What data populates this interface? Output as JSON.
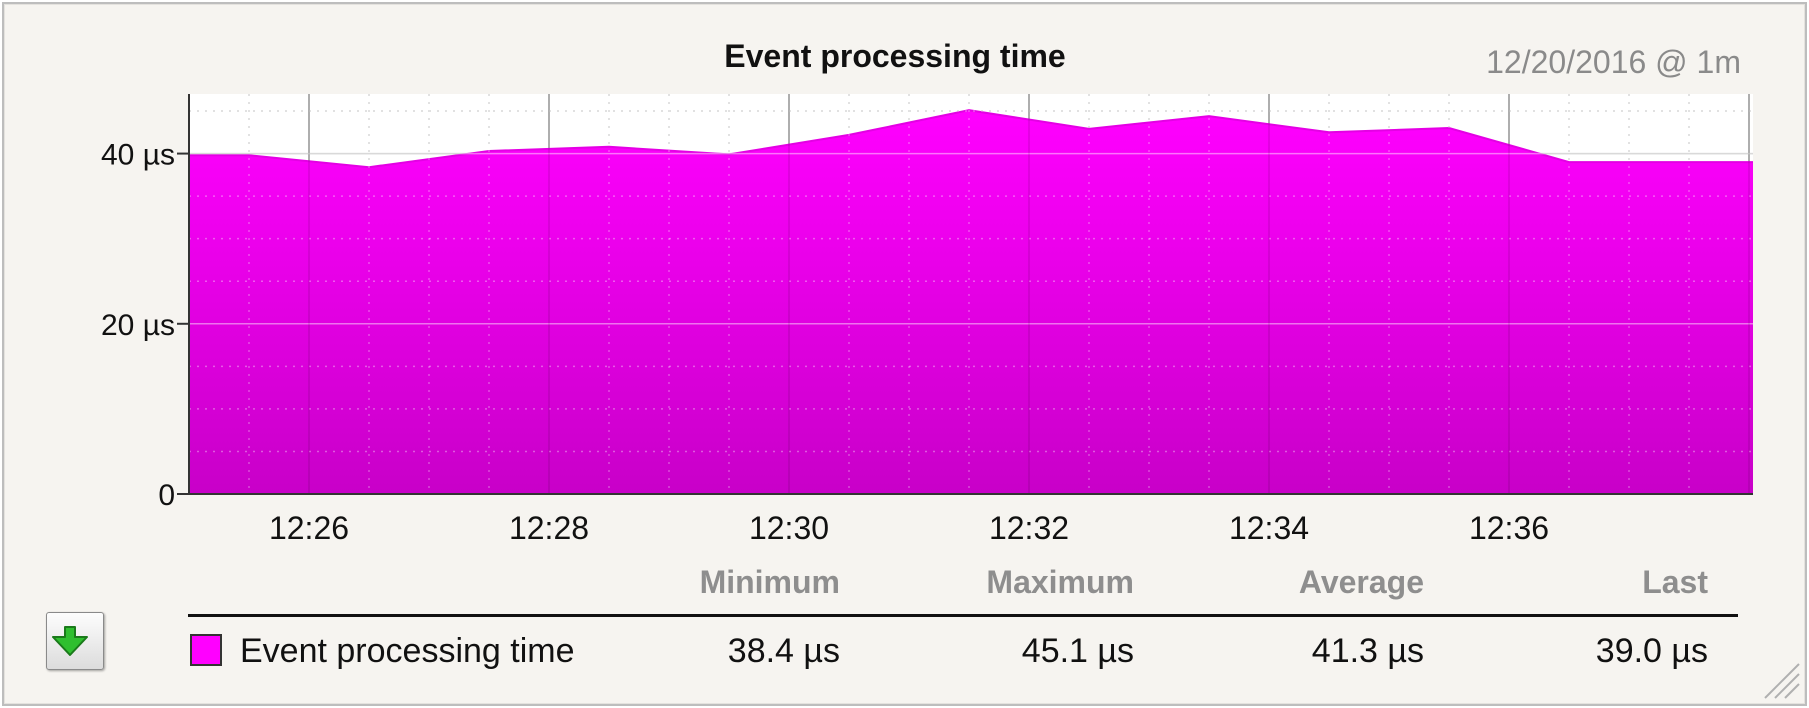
{
  "chart": {
    "title": "Event processing time",
    "date_label": "12/20/2016 @ 1m"
  },
  "chart_data": {
    "type": "area",
    "title": "Event processing time",
    "xlabel": "",
    "ylabel": "",
    "x_ticks": [
      "12:26",
      "12:28",
      "12:30",
      "12:32",
      "12:34",
      "12:36"
    ],
    "y_ticks": [
      "0",
      "20 µs",
      "40 µs"
    ],
    "ylim": [
      0,
      47
    ],
    "grid": true,
    "legend": "bottom",
    "series": [
      {
        "name": "Event processing time",
        "color": "#ff00ff",
        "x": [
          "12:25",
          "12:25:30",
          "12:26:30",
          "12:27:30",
          "12:28:30",
          "12:29:30",
          "12:30:30",
          "12:31:30",
          "12:32:30",
          "12:33:30",
          "12:34:30",
          "12:35:30",
          "12:36:30",
          "12:37:30"
        ],
        "values": [
          39.8,
          39.8,
          38.4,
          40.3,
          40.8,
          39.9,
          42.2,
          45.1,
          42.9,
          44.4,
          42.5,
          43.0,
          39.0,
          39.0
        ]
      }
    ]
  },
  "stats": {
    "headers": [
      "Minimum",
      "Maximum",
      "Average",
      "Last"
    ],
    "rows": [
      {
        "name": "Event processing time",
        "values": [
          "38.4 µs",
          "45.1 µs",
          "41.3 µs",
          "39.0 µs"
        ]
      }
    ]
  },
  "icons": {
    "export": "download-arrow-icon",
    "resize": "resize-grip-icon"
  }
}
